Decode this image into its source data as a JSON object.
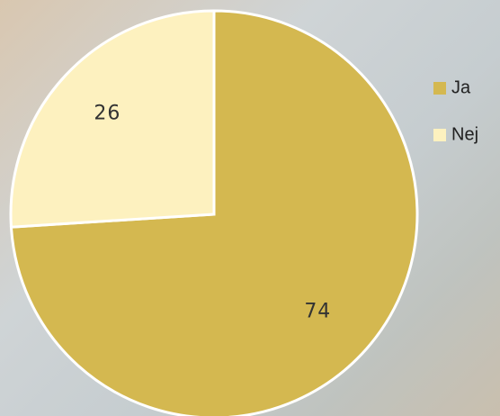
{
  "chart_data": {
    "type": "pie",
    "categories": [
      "Ja",
      "Nej"
    ],
    "values": [
      74,
      26
    ],
    "colors": [
      "#d4b850",
      "#fdf1bf"
    ],
    "legend": "right"
  }
}
